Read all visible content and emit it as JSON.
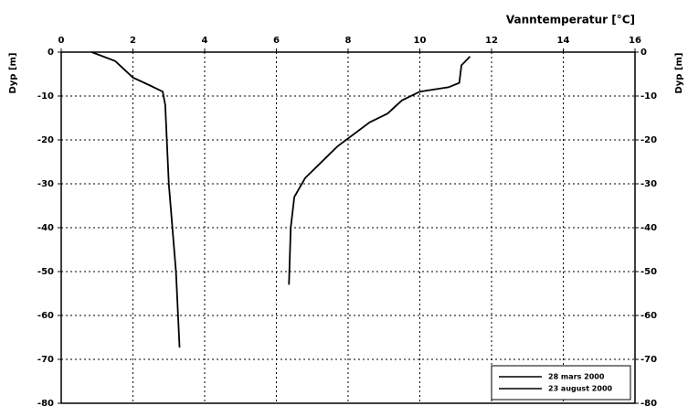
{
  "chart_data": {
    "type": "line",
    "x_label": "Vanntemperatur [°C]",
    "y_label": "Dyp [m]",
    "y2_label": "Dyp [m]",
    "xlim": [
      0,
      16
    ],
    "xticks": [
      0,
      2,
      4,
      6,
      8,
      10,
      12,
      14,
      16
    ],
    "ylim": [
      -80,
      0
    ],
    "yticks": [
      0,
      -10,
      -20,
      -30,
      -40,
      -50,
      -60,
      -70,
      -80
    ],
    "y2lim": [
      -80,
      0
    ],
    "y2ticks": [
      0,
      -10,
      -20,
      -30,
      -40,
      -50,
      -60,
      -70,
      -80
    ],
    "grid": true,
    "legend": "lower right",
    "series": [
      {
        "name": "28 mars 2000",
        "color": "#000000",
        "x": [
          0.85,
          1.5,
          2.0,
          2.45,
          2.83,
          2.9,
          3.0,
          3.2,
          3.3
        ],
        "values": [
          0,
          -2,
          -5.8,
          -7.5,
          -9,
          -12,
          -30,
          -50,
          -67.3
        ]
      },
      {
        "name": "23 august 2000",
        "color": "#000000",
        "x": [
          11.4,
          11.16,
          11.1,
          10.8,
          10.0,
          9.5,
          9.1,
          8.6,
          7.7,
          6.8,
          6.5,
          6.4,
          6.35
        ],
        "values": [
          -1,
          -3,
          -7,
          -8,
          -9,
          -11,
          -14,
          -16,
          -21.5,
          -28.7,
          -33,
          -40,
          -53
        ]
      }
    ]
  }
}
